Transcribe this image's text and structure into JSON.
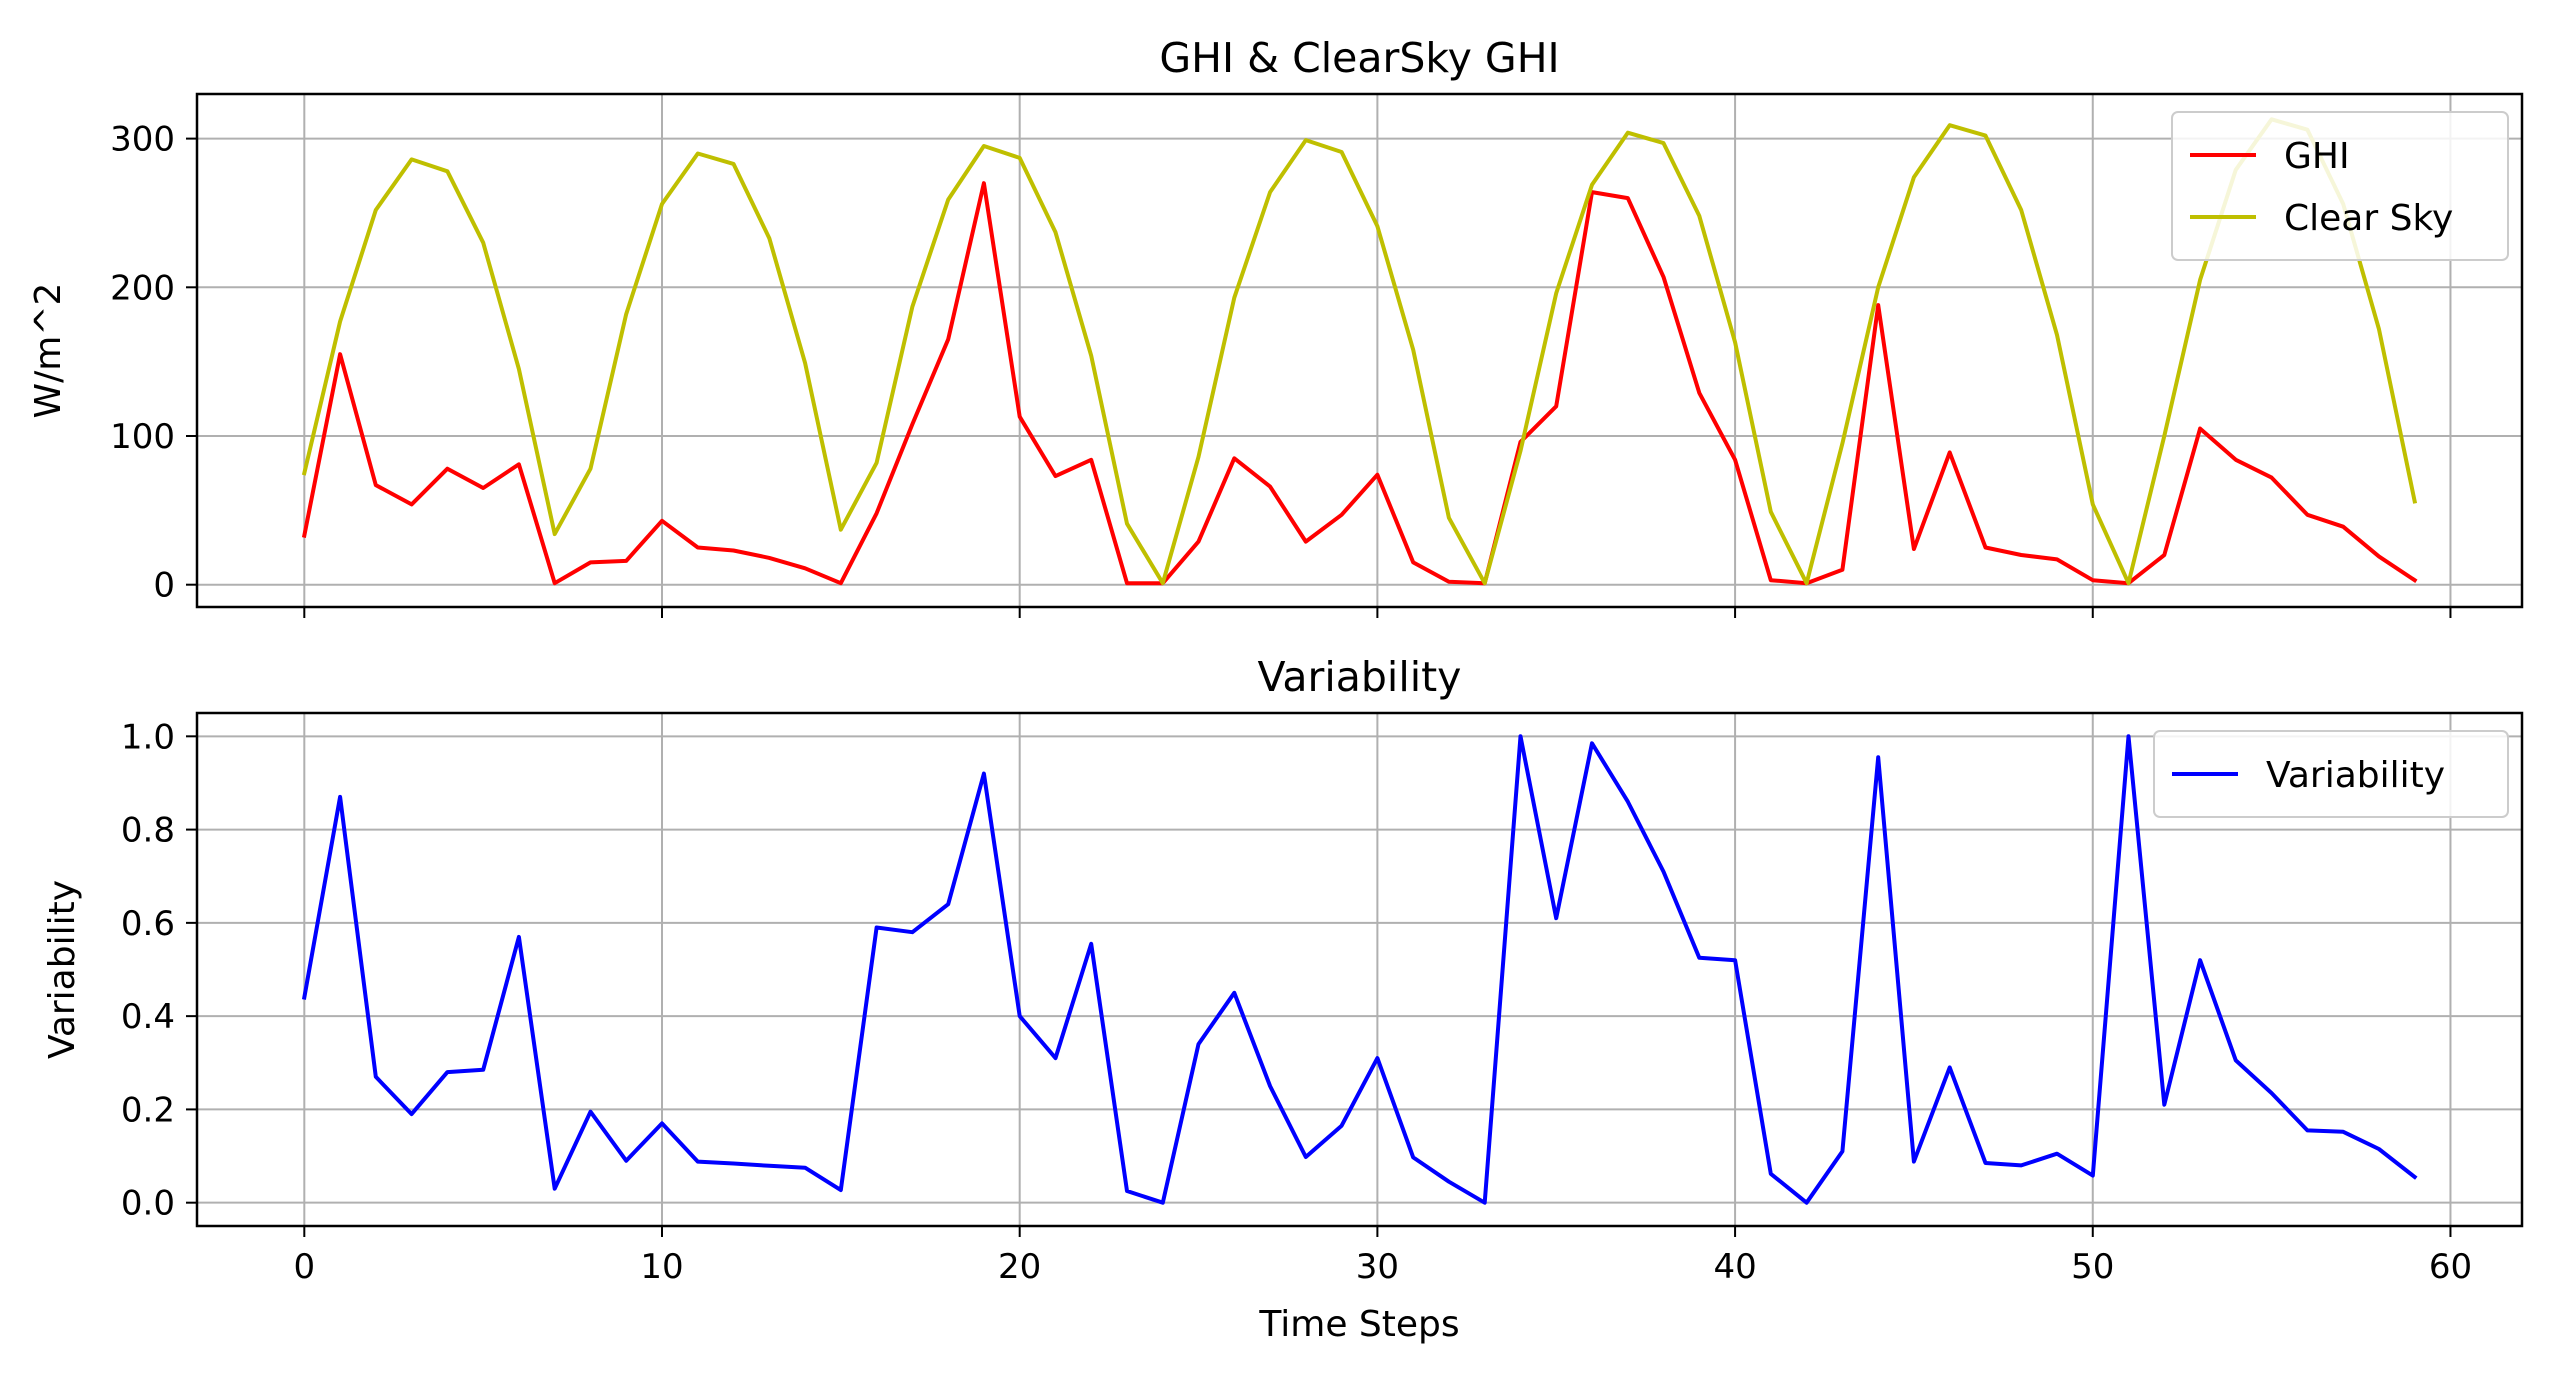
{
  "chart_data": [
    {
      "type": "line",
      "title": "GHI & ClearSky GHI",
      "xlabel": "",
      "ylabel": "W/m^2",
      "xlim": [
        -3,
        62
      ],
      "ylim": [
        -15,
        330
      ],
      "x_ticks": [
        0,
        10,
        20,
        30,
        40,
        50,
        60
      ],
      "x_tick_labels_visible": false,
      "y_ticks": [
        0,
        100,
        200,
        300
      ],
      "grid": true,
      "legend": "top-right",
      "x": [
        0,
        1,
        2,
        3,
        4,
        5,
        6,
        7,
        8,
        9,
        10,
        11,
        12,
        13,
        14,
        15,
        16,
        17,
        18,
        19,
        20,
        21,
        22,
        23,
        24,
        25,
        26,
        27,
        28,
        29,
        30,
        31,
        32,
        33,
        34,
        35,
        36,
        37,
        38,
        39,
        40,
        41,
        42,
        43,
        44,
        45,
        46,
        47,
        48,
        49,
        50,
        51,
        52,
        53,
        54,
        55,
        56,
        57,
        58,
        59
      ],
      "series": [
        {
          "name": "GHI",
          "color": "#ff0000",
          "values": [
            33,
            155,
            67,
            54,
            78,
            65,
            81,
            1,
            15,
            16,
            43,
            25,
            23,
            18,
            11,
            1,
            48,
            108,
            165,
            270,
            113,
            73,
            84,
            1,
            1,
            29,
            85,
            66,
            29,
            47,
            74,
            15,
            2,
            1,
            96,
            120,
            264,
            260,
            207,
            129,
            84,
            3,
            1,
            10,
            188,
            24,
            89,
            25,
            20,
            17,
            3,
            1,
            20,
            105,
            84,
            72,
            47,
            39,
            19,
            3
          ]
        },
        {
          "name": "Clear Sky",
          "color": "#bfbf00",
          "values": [
            75,
            177,
            252,
            286,
            278,
            230,
            145,
            34,
            78,
            182,
            256,
            290,
            283,
            233,
            149,
            37,
            82,
            187,
            259,
            295,
            287,
            237,
            154,
            41,
            1,
            86,
            193,
            264,
            299,
            291,
            241,
            158,
            45,
            1,
            90,
            196,
            269,
            304,
            297,
            248,
            163,
            49,
            1,
            95,
            200,
            274,
            309,
            302,
            252,
            168,
            54,
            1,
            100,
            205,
            279,
            313,
            306,
            256,
            172,
            56
          ]
        }
      ]
    },
    {
      "type": "line",
      "title": "Variability",
      "xlabel": "Time Steps",
      "ylabel": "Variability",
      "xlim": [
        -3,
        62
      ],
      "ylim": [
        -0.05,
        1.05
      ],
      "x_ticks": [
        0,
        10,
        20,
        30,
        40,
        50,
        60
      ],
      "y_ticks": [
        0.0,
        0.2,
        0.4,
        0.6,
        0.8,
        1.0
      ],
      "grid": true,
      "legend": "top-right",
      "x": [
        0,
        1,
        2,
        3,
        4,
        5,
        6,
        7,
        8,
        9,
        10,
        11,
        12,
        13,
        14,
        15,
        16,
        17,
        18,
        19,
        20,
        21,
        22,
        23,
        24,
        25,
        26,
        27,
        28,
        29,
        30,
        31,
        32,
        33,
        34,
        35,
        36,
        37,
        38,
        39,
        40,
        41,
        42,
        43,
        44,
        45,
        46,
        47,
        48,
        49,
        50,
        51,
        52,
        53,
        54,
        55,
        56,
        57,
        58,
        59
      ],
      "series": [
        {
          "name": "Variability",
          "color": "#0000ff",
          "values": [
            0.44,
            0.87,
            0.27,
            0.19,
            0.28,
            0.285,
            0.57,
            0.03,
            0.195,
            0.09,
            0.17,
            0.088,
            0.084,
            0.079,
            0.075,
            0.027,
            0.59,
            0.58,
            0.64,
            0.92,
            0.4,
            0.31,
            0.555,
            0.025,
            0.0,
            0.34,
            0.45,
            0.25,
            0.098,
            0.165,
            0.31,
            0.097,
            0.045,
            0.0,
            1.0,
            0.61,
            0.985,
            0.86,
            0.71,
            0.525,
            0.52,
            0.062,
            0.0,
            0.11,
            0.955,
            0.088,
            0.29,
            0.085,
            0.08,
            0.105,
            0.058,
            1.0,
            0.21,
            0.52,
            0.305,
            0.235,
            0.155,
            0.152,
            0.115,
            0.055
          ]
        }
      ]
    }
  ]
}
